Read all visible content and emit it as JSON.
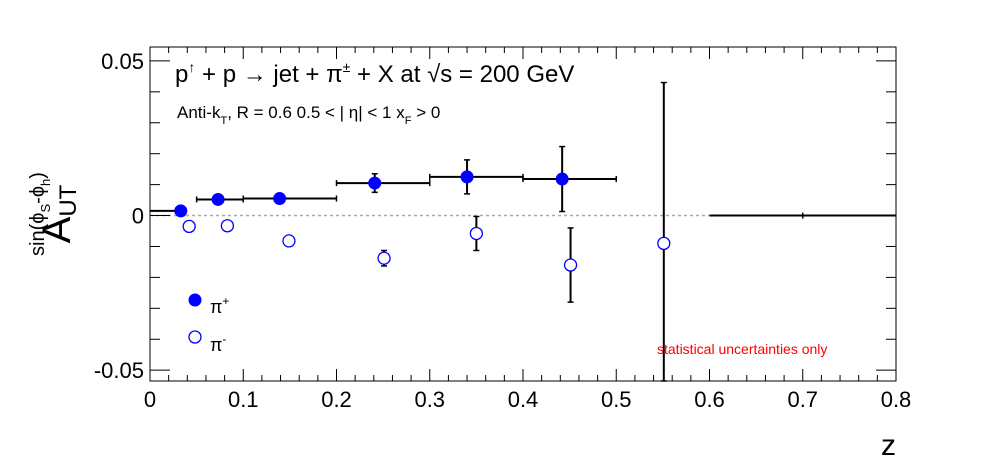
{
  "chart_data": {
    "type": "scatter",
    "title": {
      "p": "p",
      "arrow_up": "↑",
      "mid": " + p ",
      "arrow_right": "→",
      "mid2": " jet + π",
      "pm": "±",
      "end": " + X at  ",
      "sqrt": "√",
      "s_end": "s = 200 GeV"
    },
    "subtitle": {
      "a": "Anti-k",
      "a_sub": "T",
      "b": ", R = 0.6   0.5 < | η| < 1   x",
      "b_sub": "F",
      "c": " > 0"
    },
    "ylabel": {
      "main": "A",
      "sub": "UT",
      "sup_a": "sin(ϕ",
      "sup_s": "S",
      "sup_b": "-ϕ",
      "sup_h": "h",
      "sup_c": ")"
    },
    "xlabel": "z",
    "xlim": [
      0,
      0.8
    ],
    "ylim": [
      -0.0535,
      0.0545
    ],
    "x_ticks": [
      "0",
      "0.1",
      "0.2",
      "0.3",
      "0.4",
      "0.5",
      "0.6",
      "0.7",
      "0.8"
    ],
    "y_ticks": [
      "-0.05",
      "0",
      "0.05"
    ],
    "reference_line_y": 0,
    "annotation": "statistical uncertainties only",
    "annotation_color": "#ff0000",
    "marker_color": "#0000ff",
    "legend": [
      {
        "name": "π",
        "sup": "+",
        "marker": "filled-circle"
      },
      {
        "name": "π",
        "sup": "-",
        "marker": "open-circle"
      }
    ],
    "bins": [
      {
        "xlo": 0.0,
        "xhi": 0.05
      },
      {
        "xlo": 0.05,
        "xhi": 0.1
      },
      {
        "xlo": 0.1,
        "xhi": 0.2
      },
      {
        "xlo": 0.2,
        "xhi": 0.3
      },
      {
        "xlo": 0.3,
        "xhi": 0.4
      },
      {
        "xlo": 0.4,
        "xhi": 0.5
      },
      {
        "xlo": 0.5,
        "xhi": 0.6
      },
      {
        "xlo": 0.6,
        "xhi": 0.8
      }
    ],
    "series": [
      {
        "name": "π+",
        "points": [
          {
            "x": 0.033,
            "y": 0.0015,
            "err": 0.0004
          },
          {
            "x": 0.073,
            "y": 0.0052,
            "err": 0.0005
          },
          {
            "x": 0.139,
            "y": 0.0055,
            "err": 0.0006
          },
          {
            "x": 0.241,
            "y": 0.0105,
            "err": 0.003
          },
          {
            "x": 0.34,
            "y": 0.0125,
            "err": 0.0055
          },
          {
            "x": 0.442,
            "y": 0.0118,
            "err": 0.0105
          }
        ]
      },
      {
        "name": "π-",
        "points": [
          {
            "x": 0.042,
            "y": -0.0035,
            "err": 0.0004
          },
          {
            "x": 0.083,
            "y": -0.0033,
            "err": 0.0006
          },
          {
            "x": 0.149,
            "y": -0.0082,
            "err": 0.0008
          },
          {
            "x": 0.251,
            "y": -0.0138,
            "err": 0.0025
          },
          {
            "x": 0.35,
            "y": -0.0058,
            "err": 0.0055
          },
          {
            "x": 0.451,
            "y": -0.016,
            "err": 0.012
          },
          {
            "x": 0.551,
            "y": -0.009,
            "err": 0.052
          }
        ]
      }
    ],
    "black_segments": [
      {
        "xlo": 0.0,
        "xhi": 0.033,
        "y": 0.0015
      },
      {
        "xlo": 0.6,
        "xhi": 0.8,
        "y": 0.0,
        "mark_x": 0.7
      }
    ]
  }
}
